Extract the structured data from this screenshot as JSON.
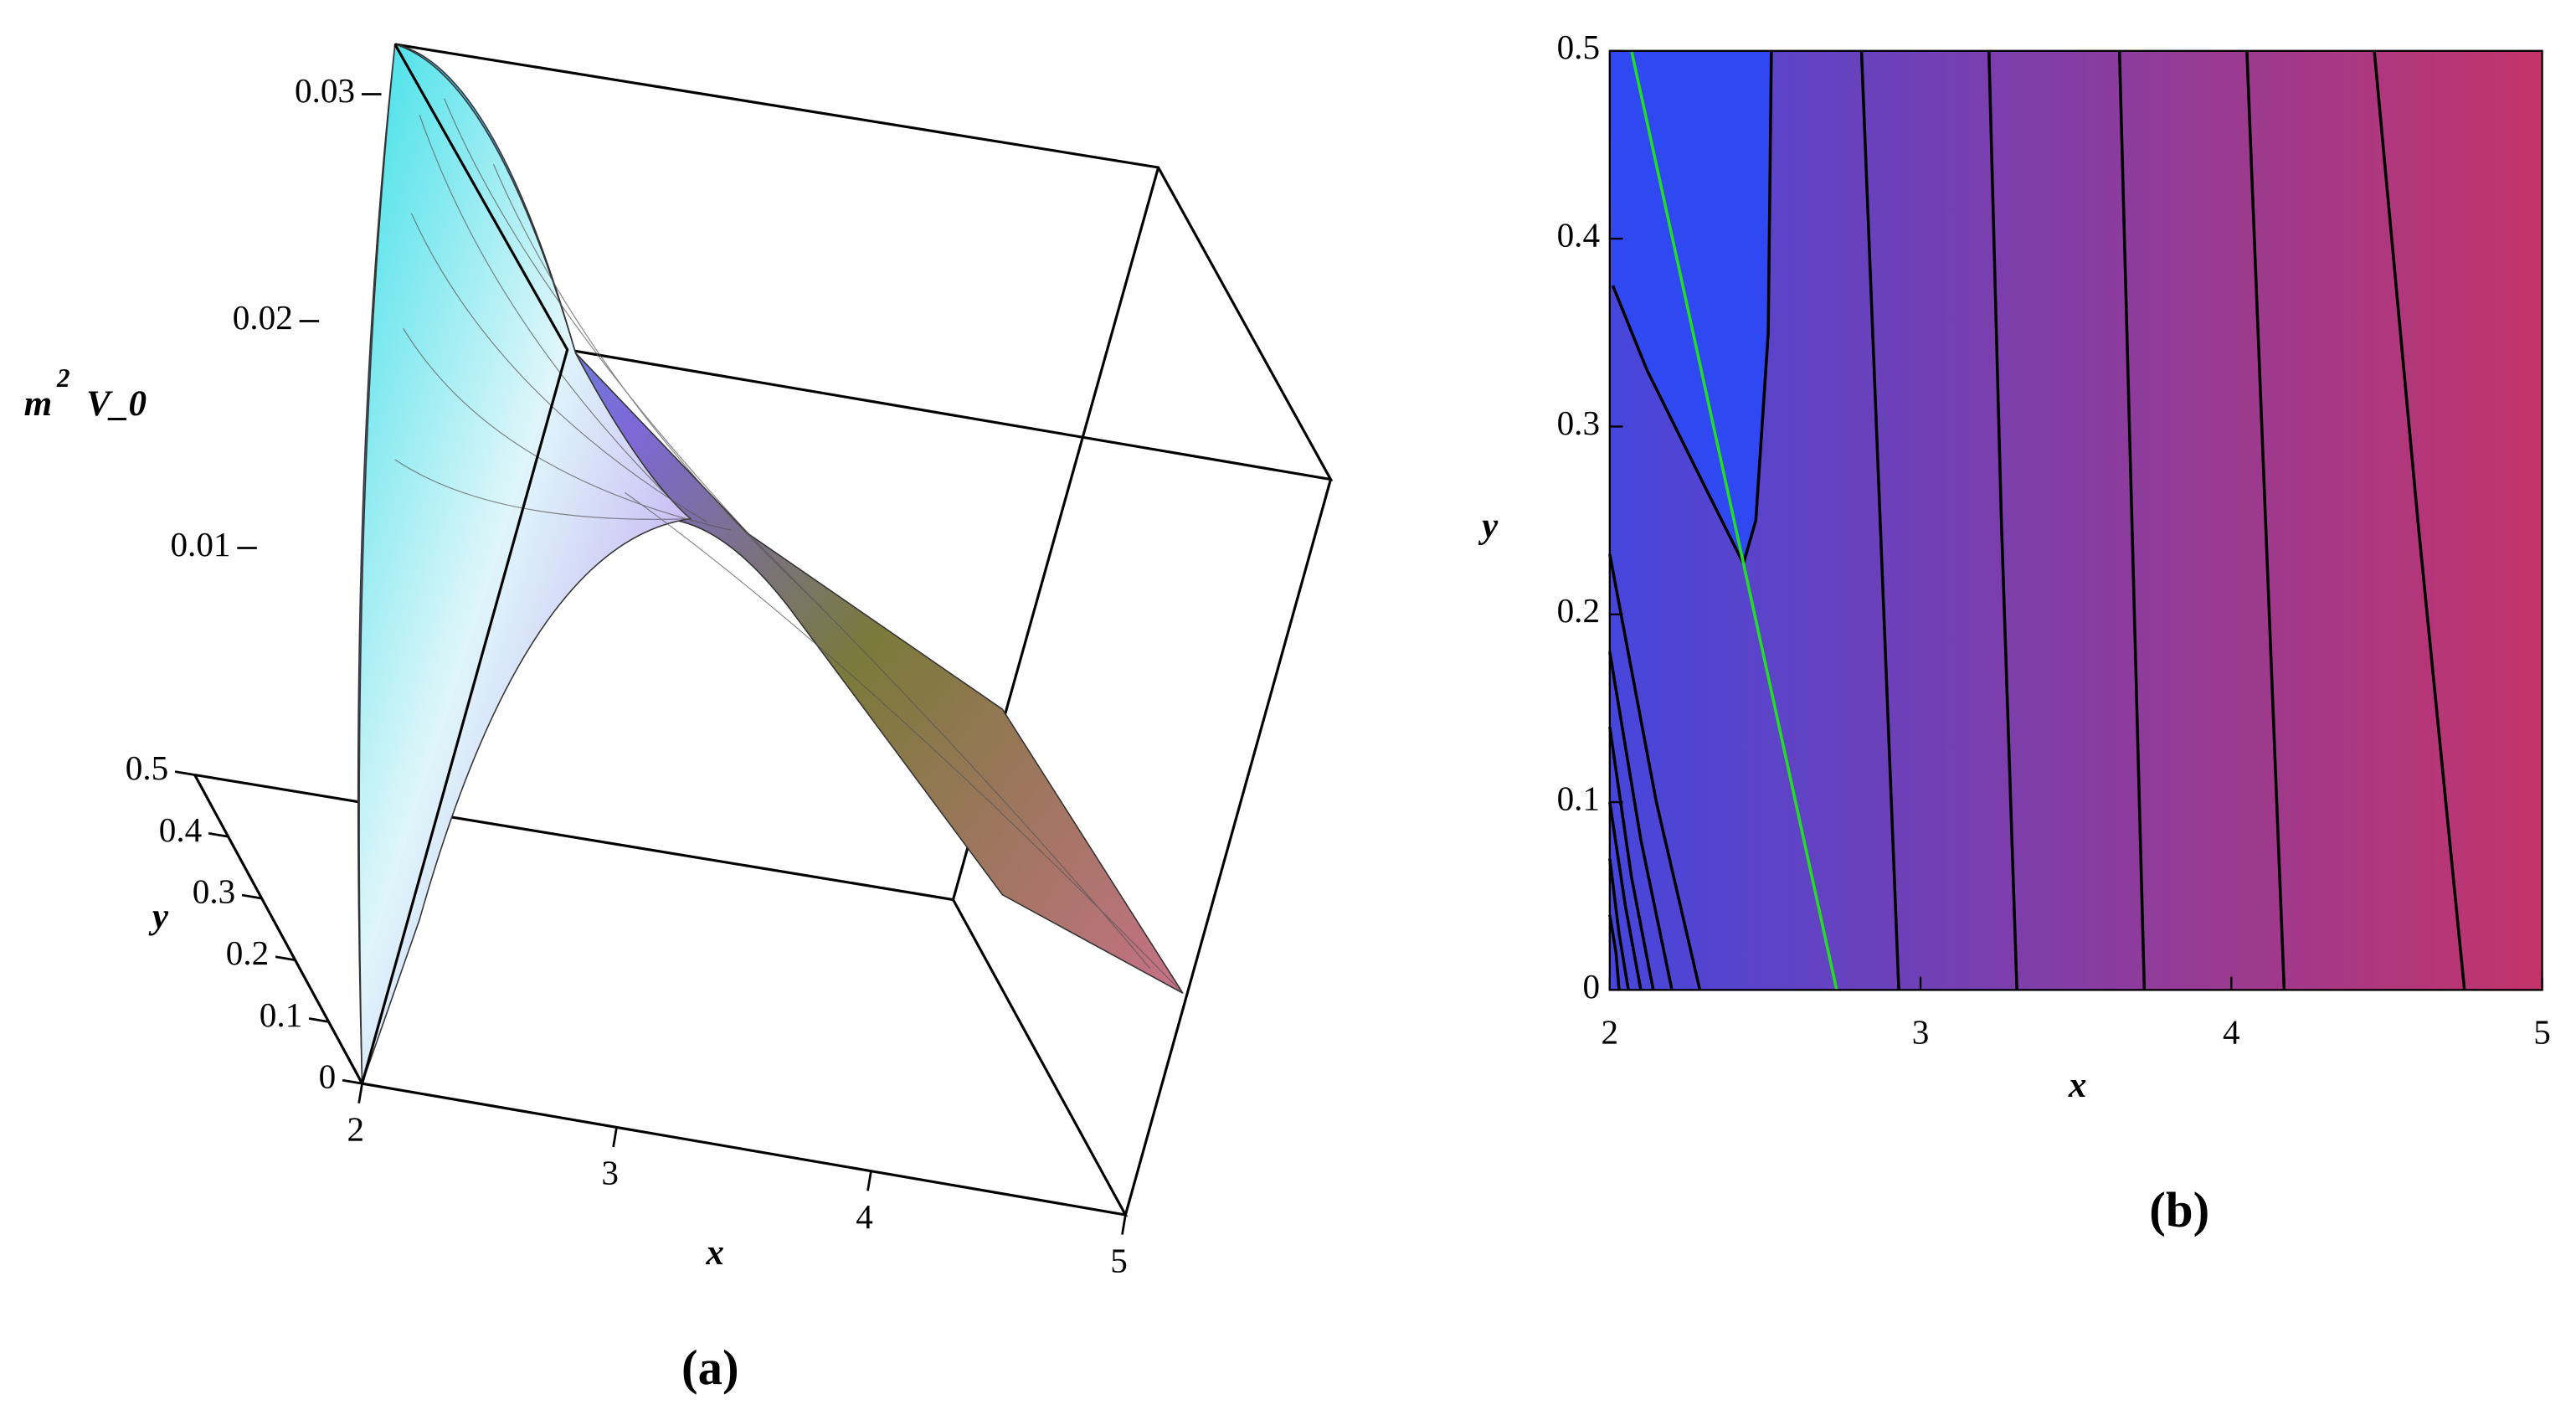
{
  "chart_data": [
    {
      "type": "surface3d",
      "zlabel": [
        "m",
        "2",
        "V_0"
      ],
      "xlabel": "x",
      "ylabel": "y",
      "caption": "(a)",
      "xlim": [
        2,
        5
      ],
      "ylim": [
        0,
        0.5
      ],
      "zlim": [
        0,
        0.0322
      ],
      "xticks": [
        2,
        3,
        4,
        5
      ],
      "yticks": [
        0,
        0.1,
        0.2,
        0.3,
        0.4,
        0.5
      ],
      "zticks": [
        0.01,
        0.02,
        0.03
      ]
    },
    {
      "type": "contour",
      "xlabel": "x",
      "ylabel": "y",
      "caption": "(b)",
      "xlim": [
        2,
        5
      ],
      "ylim": [
        0,
        0.5
      ],
      "xticks": [
        2,
        3,
        4,
        5
      ],
      "yticks": [
        0,
        0.1,
        0.2,
        0.3,
        0.4,
        0.5
      ],
      "colormap": [
        "#2f48f2",
        "#4646dc",
        "#c4346a"
      ],
      "series": [
        {
          "color": "#000000",
          "x": [
            2.52,
            2.51,
            2.47,
            2.43,
            2.3,
            2.12,
            2.01
          ],
          "values": [
            0.5,
            0.35,
            0.25,
            0.227,
            0.27,
            0.33,
            0.375
          ]
        },
        {
          "color": "#000000",
          "x": [
            2.81,
            2.87,
            2.93
          ],
          "values": [
            0.5,
            0.25,
            0
          ]
        },
        {
          "color": "#000000",
          "x": [
            3.22,
            3.26,
            3.31
          ],
          "values": [
            0.5,
            0.25,
            0
          ]
        },
        {
          "color": "#000000",
          "x": [
            3.64,
            3.68,
            3.72
          ],
          "values": [
            0.5,
            0.25,
            0
          ]
        },
        {
          "color": "#000000",
          "x": [
            4.05,
            4.11,
            4.17
          ],
          "values": [
            0.5,
            0.25,
            0
          ]
        },
        {
          "color": "#000000",
          "x": [
            4.46,
            4.6,
            4.75
          ],
          "values": [
            0.5,
            0.25,
            0
          ]
        },
        {
          "color": "#000000",
          "x": [
            2,
            2.15,
            2.29
          ],
          "values": [
            0.232,
            0.1,
            0
          ]
        },
        {
          "color": "#000000",
          "x": [
            2,
            2.1,
            2.2
          ],
          "values": [
            0.18,
            0.08,
            0
          ]
        },
        {
          "color": "#000000",
          "x": [
            2,
            2.07,
            2.14
          ],
          "values": [
            0.14,
            0.06,
            0
          ]
        },
        {
          "color": "#000000",
          "x": [
            2,
            2.05,
            2.1
          ],
          "values": [
            0.1,
            0.045,
            0
          ]
        },
        {
          "color": "#000000",
          "x": [
            2,
            2.03,
            2.06
          ],
          "values": [
            0.07,
            0.03,
            0
          ]
        },
        {
          "color": "#000000",
          "x": [
            2,
            2.02,
            2.03
          ],
          "values": [
            0.04,
            0.02,
            0
          ]
        },
        {
          "color": "#22dd22",
          "x": [
            2.07,
            2.73
          ],
          "values": [
            0.5,
            0
          ]
        }
      ]
    }
  ]
}
